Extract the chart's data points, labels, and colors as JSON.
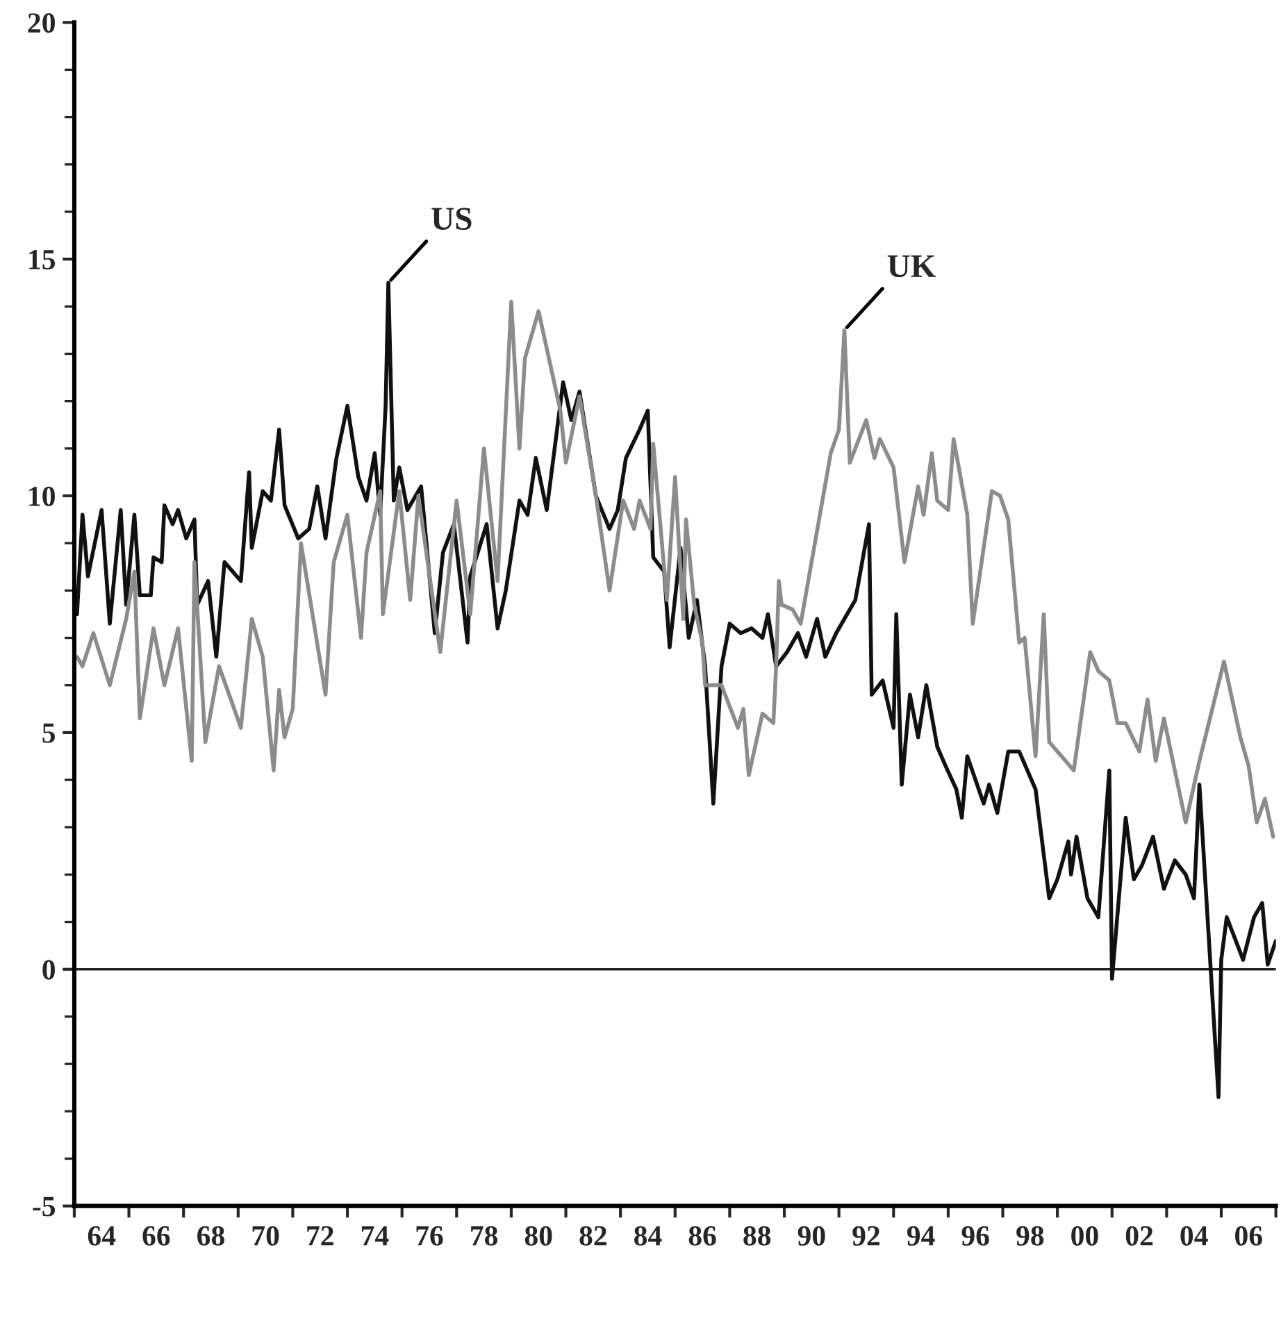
{
  "chart_data": {
    "type": "line",
    "series": [
      {
        "color": "#111111",
        "x": [
          1963.1,
          1963.3,
          1963.5,
          1964.0,
          1964.3,
          1964.7,
          1964.9,
          1965.2,
          1965.4,
          1965.8,
          1965.9,
          1966.2,
          1966.3,
          1966.6,
          1966.8,
          1967.1,
          1967.4,
          1967.5,
          1967.9,
          1968.2,
          1968.5,
          1968.8,
          1969.1,
          1969.4,
          1969.5,
          1969.9,
          1970.2,
          1970.5,
          1970.7,
          1971.2,
          1971.6,
          1971.9,
          1972.2,
          1972.6,
          1973.0,
          1973.4,
          1973.7,
          1974.0,
          1974.2,
          1974.4,
          1974.5,
          1974.7,
          1974.9,
          1975.2,
          1975.7,
          1976.2,
          1976.5,
          1976.9,
          1977.4,
          1977.5,
          1978.1,
          1978.5,
          1978.8,
          1979.3,
          1979.6,
          1979.9,
          1980.3,
          1980.9,
          1981.2,
          1981.5,
          1982.1,
          1982.6,
          1982.9,
          1983.2,
          1983.7,
          1984.0,
          1984.2,
          1984.6,
          1984.8,
          1985.2,
          1985.5,
          1985.8,
          1986.1,
          1986.4,
          1986.7,
          1987.0,
          1987.4,
          1987.8,
          1988.2,
          1988.4,
          1988.7,
          1989.1,
          1989.5,
          1989.8,
          1990.2,
          1990.5,
          1990.9,
          1991.3,
          1991.6,
          1992.1,
          1992.2,
          1992.6,
          1993.0,
          1993.1,
          1993.3,
          1993.6,
          1993.9,
          1994.2,
          1994.6,
          1994.9,
          1995.3,
          1995.5,
          1995.7,
          1996.3,
          1996.5,
          1996.8,
          1997.2,
          1997.6,
          1998.2,
          1998.7,
          1999.0,
          1999.4,
          1999.5,
          1999.7,
          2000.1,
          2000.5,
          2000.9,
          2001.0,
          2001.5,
          2001.8,
          2002.1,
          2002.5,
          2002.9,
          2003.3,
          2003.7,
          2004.0,
          2004.2,
          2004.9,
          2005.0,
          2005.2,
          2005.8,
          2006.2,
          2006.5,
          2006.7,
          2007.0
        ],
        "values": [
          7.5,
          9.6,
          8.3,
          9.7,
          7.3,
          9.7,
          7.7,
          9.6,
          7.9,
          7.9,
          8.7,
          8.6,
          9.8,
          9.4,
          9.7,
          9.1,
          9.5,
          7.7,
          8.2,
          6.6,
          8.6,
          8.4,
          8.2,
          10.5,
          8.9,
          10.1,
          9.9,
          11.4,
          9.8,
          9.1,
          9.3,
          10.2,
          9.1,
          10.8,
          11.9,
          10.4,
          9.9,
          10.9,
          9.6,
          11.9,
          14.5,
          9.9,
          10.6,
          9.7,
          10.2,
          7.1,
          8.8,
          9.4,
          6.9,
          8.3,
          9.4,
          7.2,
          8.0,
          9.9,
          9.6,
          10.8,
          9.7,
          12.4,
          11.6,
          12.2,
          10.0,
          9.3,
          9.7,
          10.8,
          11.4,
          11.8,
          8.7,
          8.4,
          6.8,
          8.9,
          7.0,
          7.8,
          6.4,
          3.5,
          6.4,
          7.3,
          7.1,
          7.2,
          7.0,
          7.5,
          6.4,
          6.7,
          7.1,
          6.6,
          7.4,
          6.6,
          7.1,
          7.5,
          7.8,
          9.4,
          5.8,
          6.1,
          5.1,
          7.5,
          3.9,
          5.8,
          4.9,
          6.0,
          4.7,
          4.3,
          3.8,
          3.2,
          4.5,
          3.5,
          3.9,
          3.3,
          4.6,
          4.6,
          3.8,
          1.5,
          1.9,
          2.7,
          2.0,
          2.8,
          1.5,
          1.1,
          4.2,
          -0.2,
          3.2,
          1.9,
          2.2,
          2.8,
          1.7,
          2.3,
          2.0,
          1.5,
          3.9,
          -2.7,
          0.2,
          1.1,
          0.2,
          1.1,
          1.4,
          0.1,
          0.6
        ]
      },
      {
        "color": "#8c8c8c",
        "x": [
          1963.1,
          1963.3,
          1963.7,
          1964.3,
          1964.9,
          1965.2,
          1965.4,
          1965.9,
          1966.3,
          1966.8,
          1967.3,
          1967.4,
          1967.8,
          1968.3,
          1969.1,
          1969.5,
          1969.9,
          1970.3,
          1970.5,
          1970.7,
          1971.0,
          1971.3,
          1972.2,
          1972.5,
          1973.0,
          1973.5,
          1973.7,
          1974.2,
          1974.3,
          1974.9,
          1975.3,
          1975.6,
          1976.4,
          1977.0,
          1977.5,
          1978.0,
          1978.5,
          1979.0,
          1979.3,
          1979.5,
          1980.0,
          1980.8,
          1981.0,
          1981.5,
          1982.1,
          1982.6,
          1983.1,
          1983.5,
          1983.7,
          1984.1,
          1984.2,
          1984.7,
          1985.0,
          1985.3,
          1985.4,
          1985.7,
          1986.0,
          1986.1,
          1986.7,
          1987.3,
          1987.5,
          1987.7,
          1988.2,
          1988.6,
          1988.7,
          1988.8,
          1988.9,
          1989.3,
          1989.6,
          1990.7,
          1991.0,
          1991.2,
          1991.4,
          1992.0,
          1992.3,
          1992.5,
          1993.0,
          1993.4,
          1993.9,
          1994.1,
          1994.4,
          1994.6,
          1995.0,
          1995.2,
          1995.7,
          1995.9,
          1996.6,
          1996.9,
          1997.2,
          1997.6,
          1997.8,
          1998.2,
          1998.5,
          1998.7,
          1999.6,
          2000.2,
          2000.5,
          2000.9,
          2001.2,
          2001.5,
          2002.0,
          2002.3,
          2002.6,
          2002.9,
          2003.7,
          2004.2,
          2005.1,
          2005.7,
          2006.0,
          2006.3,
          2006.6,
          2006.9
        ],
        "values": [
          6.6,
          6.4,
          7.1,
          6.0,
          7.4,
          8.4,
          5.3,
          7.2,
          6.0,
          7.2,
          4.4,
          8.6,
          4.8,
          6.4,
          5.1,
          7.4,
          6.6,
          4.2,
          5.9,
          4.9,
          5.5,
          9.0,
          5.8,
          8.6,
          9.6,
          7.0,
          8.8,
          10.1,
          7.5,
          10.1,
          7.8,
          10.0,
          6.7,
          9.9,
          7.5,
          11.0,
          8.2,
          14.1,
          11.0,
          12.9,
          13.9,
          11.8,
          10.7,
          12.1,
          10.0,
          8.0,
          9.9,
          9.3,
          9.9,
          9.3,
          11.1,
          7.8,
          10.4,
          7.4,
          9.5,
          7.7,
          6.9,
          6.0,
          6.0,
          5.1,
          5.5,
          4.1,
          5.4,
          5.2,
          6.4,
          8.2,
          7.7,
          7.6,
          7.3,
          10.9,
          11.4,
          13.5,
          10.7,
          11.6,
          10.8,
          11.2,
          10.6,
          8.6,
          10.2,
          9.6,
          10.9,
          9.9,
          9.7,
          11.2,
          9.6,
          7.3,
          10.1,
          10.0,
          9.5,
          6.9,
          7.0,
          4.5,
          7.5,
          4.8,
          4.2,
          6.7,
          6.3,
          6.1,
          5.2,
          5.2,
          4.6,
          5.7,
          4.4,
          5.3,
          3.1,
          4.4,
          6.5,
          4.9,
          4.3,
          3.1,
          3.6,
          2.8
        ]
      }
    ],
    "xlim": [
      1963,
      2007
    ],
    "xticks": [
      {
        "value": 1963,
        "label": null
      },
      {
        "value": 1964,
        "label": "64"
      },
      {
        "value": 1965,
        "label": null
      },
      {
        "value": 1966,
        "label": "66"
      },
      {
        "value": 1967,
        "label": null
      },
      {
        "value": 1968,
        "label": "68"
      },
      {
        "value": 1969,
        "label": null
      },
      {
        "value": 1970,
        "label": "70"
      },
      {
        "value": 1971,
        "label": null
      },
      {
        "value": 1972,
        "label": "72"
      },
      {
        "value": 1973,
        "label": null
      },
      {
        "value": 1974,
        "label": "74"
      },
      {
        "value": 1975,
        "label": null
      },
      {
        "value": 1976,
        "label": "76"
      },
      {
        "value": 1977,
        "label": null
      },
      {
        "value": 1978,
        "label": "78"
      },
      {
        "value": 1979,
        "label": null
      },
      {
        "value": 1980,
        "label": "80"
      },
      {
        "value": 1981,
        "label": null
      },
      {
        "value": 1982,
        "label": "82"
      },
      {
        "value": 1983,
        "label": null
      },
      {
        "value": 1984,
        "label": "84"
      },
      {
        "value": 1985,
        "label": null
      },
      {
        "value": 1986,
        "label": "86"
      },
      {
        "value": 1987,
        "label": null
      },
      {
        "value": 1988,
        "label": "88"
      },
      {
        "value": 1989,
        "label": null
      },
      {
        "value": 1990,
        "label": "90"
      },
      {
        "value": 1991,
        "label": null
      },
      {
        "value": 1992,
        "label": "92"
      },
      {
        "value": 1993,
        "label": null
      },
      {
        "value": 1994,
        "label": "94"
      },
      {
        "value": 1995,
        "label": null
      },
      {
        "value": 1996,
        "label": "96"
      },
      {
        "value": 1997,
        "label": null
      },
      {
        "value": 1998,
        "label": "98"
      },
      {
        "value": 1999,
        "label": null
      },
      {
        "value": 2000,
        "label": "00"
      },
      {
        "value": 2001,
        "label": null
      },
      {
        "value": 2002,
        "label": "02"
      },
      {
        "value": 2003,
        "label": null
      },
      {
        "value": 2004,
        "label": "04"
      },
      {
        "value": 2005,
        "label": null
      },
      {
        "value": 2006,
        "label": "06"
      },
      {
        "value": 2007,
        "label": null
      }
    ],
    "annotations": [
      {
        "text": "US",
        "x": 1974.5,
        "y": 14.5
      },
      {
        "text": "UK",
        "x": 1991.2,
        "y": 13.5
      }
    ],
    "ylim": [
      -5,
      20
    ],
    "yticks": [
      -5,
      0,
      5,
      10,
      15,
      20
    ],
    "ref_lines": [
      {
        "axis": "y",
        "value": 0,
        "label": null,
        "color": "#222222"
      }
    ],
    "grid": false,
    "legend": false,
    "marker": "none",
    "line_style": "solid"
  }
}
